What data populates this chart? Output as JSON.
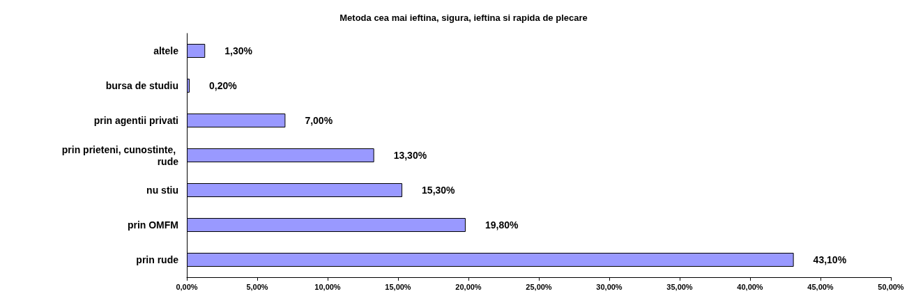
{
  "chart_data": {
    "type": "bar",
    "orientation": "horizontal",
    "title": "Metoda cea mai ieftina, sigura, ieftina si rapida de plecare",
    "categories": [
      "altele",
      "bursa de studiu",
      "prin agentii privati",
      "prin prieteni, cunostinte, rude",
      "nu stiu",
      "prin OMFM",
      "prin rude"
    ],
    "values": [
      1.3,
      0.2,
      7,
      13.3,
      15.3,
      19.8,
      43.1
    ],
    "value_labels": [
      "1,30%",
      "0,20%",
      "7,00%",
      "13,30%",
      "15,30%",
      "19,80%",
      "43,10%"
    ],
    "color": "#9999ff",
    "xlim": [
      0,
      50
    ],
    "xticks": [
      {
        "value": 0,
        "label": "0,00%"
      },
      {
        "value": 5,
        "label": "5,00%"
      },
      {
        "value": 10,
        "label": "10,00%"
      },
      {
        "value": 15,
        "label": "15,00%"
      },
      {
        "value": 20,
        "label": "20,00%"
      },
      {
        "value": 25,
        "label": "25,00%"
      },
      {
        "value": 30,
        "label": "30,00%"
      },
      {
        "value": 35,
        "label": "35,00%"
      },
      {
        "value": 40,
        "label": "40,00%"
      },
      {
        "value": 45,
        "label": "45,00%"
      },
      {
        "value": 50,
        "label": "50,00%"
      }
    ],
    "grid": false
  }
}
